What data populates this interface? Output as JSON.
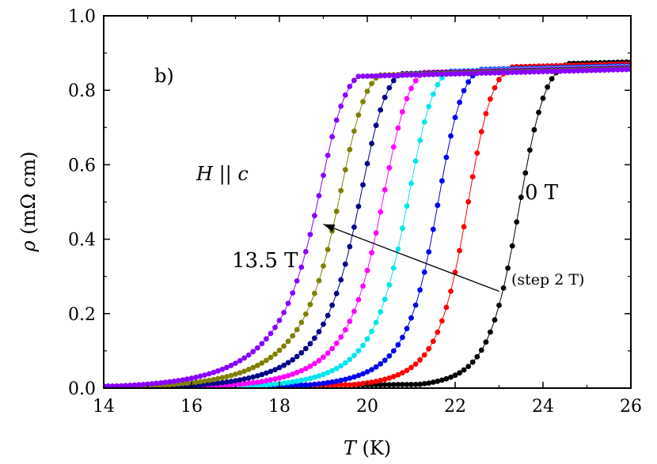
{
  "chart_data": {
    "type": "scatter",
    "panel_label": "b)",
    "xlabel_italic": "T",
    "xlabel_rest": " (K)",
    "ylabel_symbol": "ρ",
    "ylabel_rest": " (mΩ cm)",
    "xlim": [
      14,
      26
    ],
    "ylim": [
      0.0,
      1.0
    ],
    "xticks": [
      "14",
      "16",
      "18",
      "20",
      "22",
      "24",
      "26"
    ],
    "yticks": [
      "0.0",
      "0.2",
      "0.4",
      "0.6",
      "0.8",
      "1.0"
    ],
    "annotations": {
      "field_direction_H": "H",
      "field_direction_sep": " || ",
      "field_direction_c": "c",
      "zero_field": "0 T",
      "max_field": "13.5 T",
      "step": "(step 2 T)"
    },
    "arrow": {
      "from": [
        23.0,
        0.26
      ],
      "to": [
        19.0,
        0.44
      ]
    },
    "series": [
      {
        "color": "#000000",
        "Tc": 23.55,
        "width": 0.32,
        "tail_amp": 0.1,
        "tail_w": 0.75,
        "tail_top": 0.87,
        "base_slope": 0.003
      },
      {
        "color": "#ff0000",
        "Tc": 22.4,
        "width": 0.3,
        "tail_amp": 0.13,
        "tail_w": 0.8,
        "tail_top": 0.865,
        "base_slope": 0.003
      },
      {
        "color": "#0000ee",
        "Tc": 21.75,
        "width": 0.3,
        "tail_amp": 0.16,
        "tail_w": 0.85,
        "tail_top": 0.86,
        "base_slope": 0.003
      },
      {
        "color": "#00e5ee",
        "Tc": 21.1,
        "width": 0.32,
        "tail_amp": 0.19,
        "tail_w": 0.9,
        "tail_top": 0.858,
        "base_slope": 0.003
      },
      {
        "color": "#ff00ff",
        "Tc": 20.55,
        "width": 0.32,
        "tail_amp": 0.21,
        "tail_w": 0.95,
        "tail_top": 0.856,
        "base_slope": 0.003
      },
      {
        "color": "#000088",
        "Tc": 20.05,
        "width": 0.32,
        "tail_amp": 0.23,
        "tail_w": 1.0,
        "tail_top": 0.854,
        "base_slope": 0.003
      },
      {
        "color": "#808000",
        "Tc": 19.6,
        "width": 0.32,
        "tail_amp": 0.25,
        "tail_w": 1.05,
        "tail_top": 0.852,
        "base_slope": 0.003
      },
      {
        "color": "#8800ff",
        "Tc": 19.15,
        "width": 0.32,
        "tail_amp": 0.27,
        "tail_w": 1.1,
        "tail_top": 0.85,
        "base_slope": 0.003
      }
    ],
    "grid": false,
    "legend": "none"
  }
}
